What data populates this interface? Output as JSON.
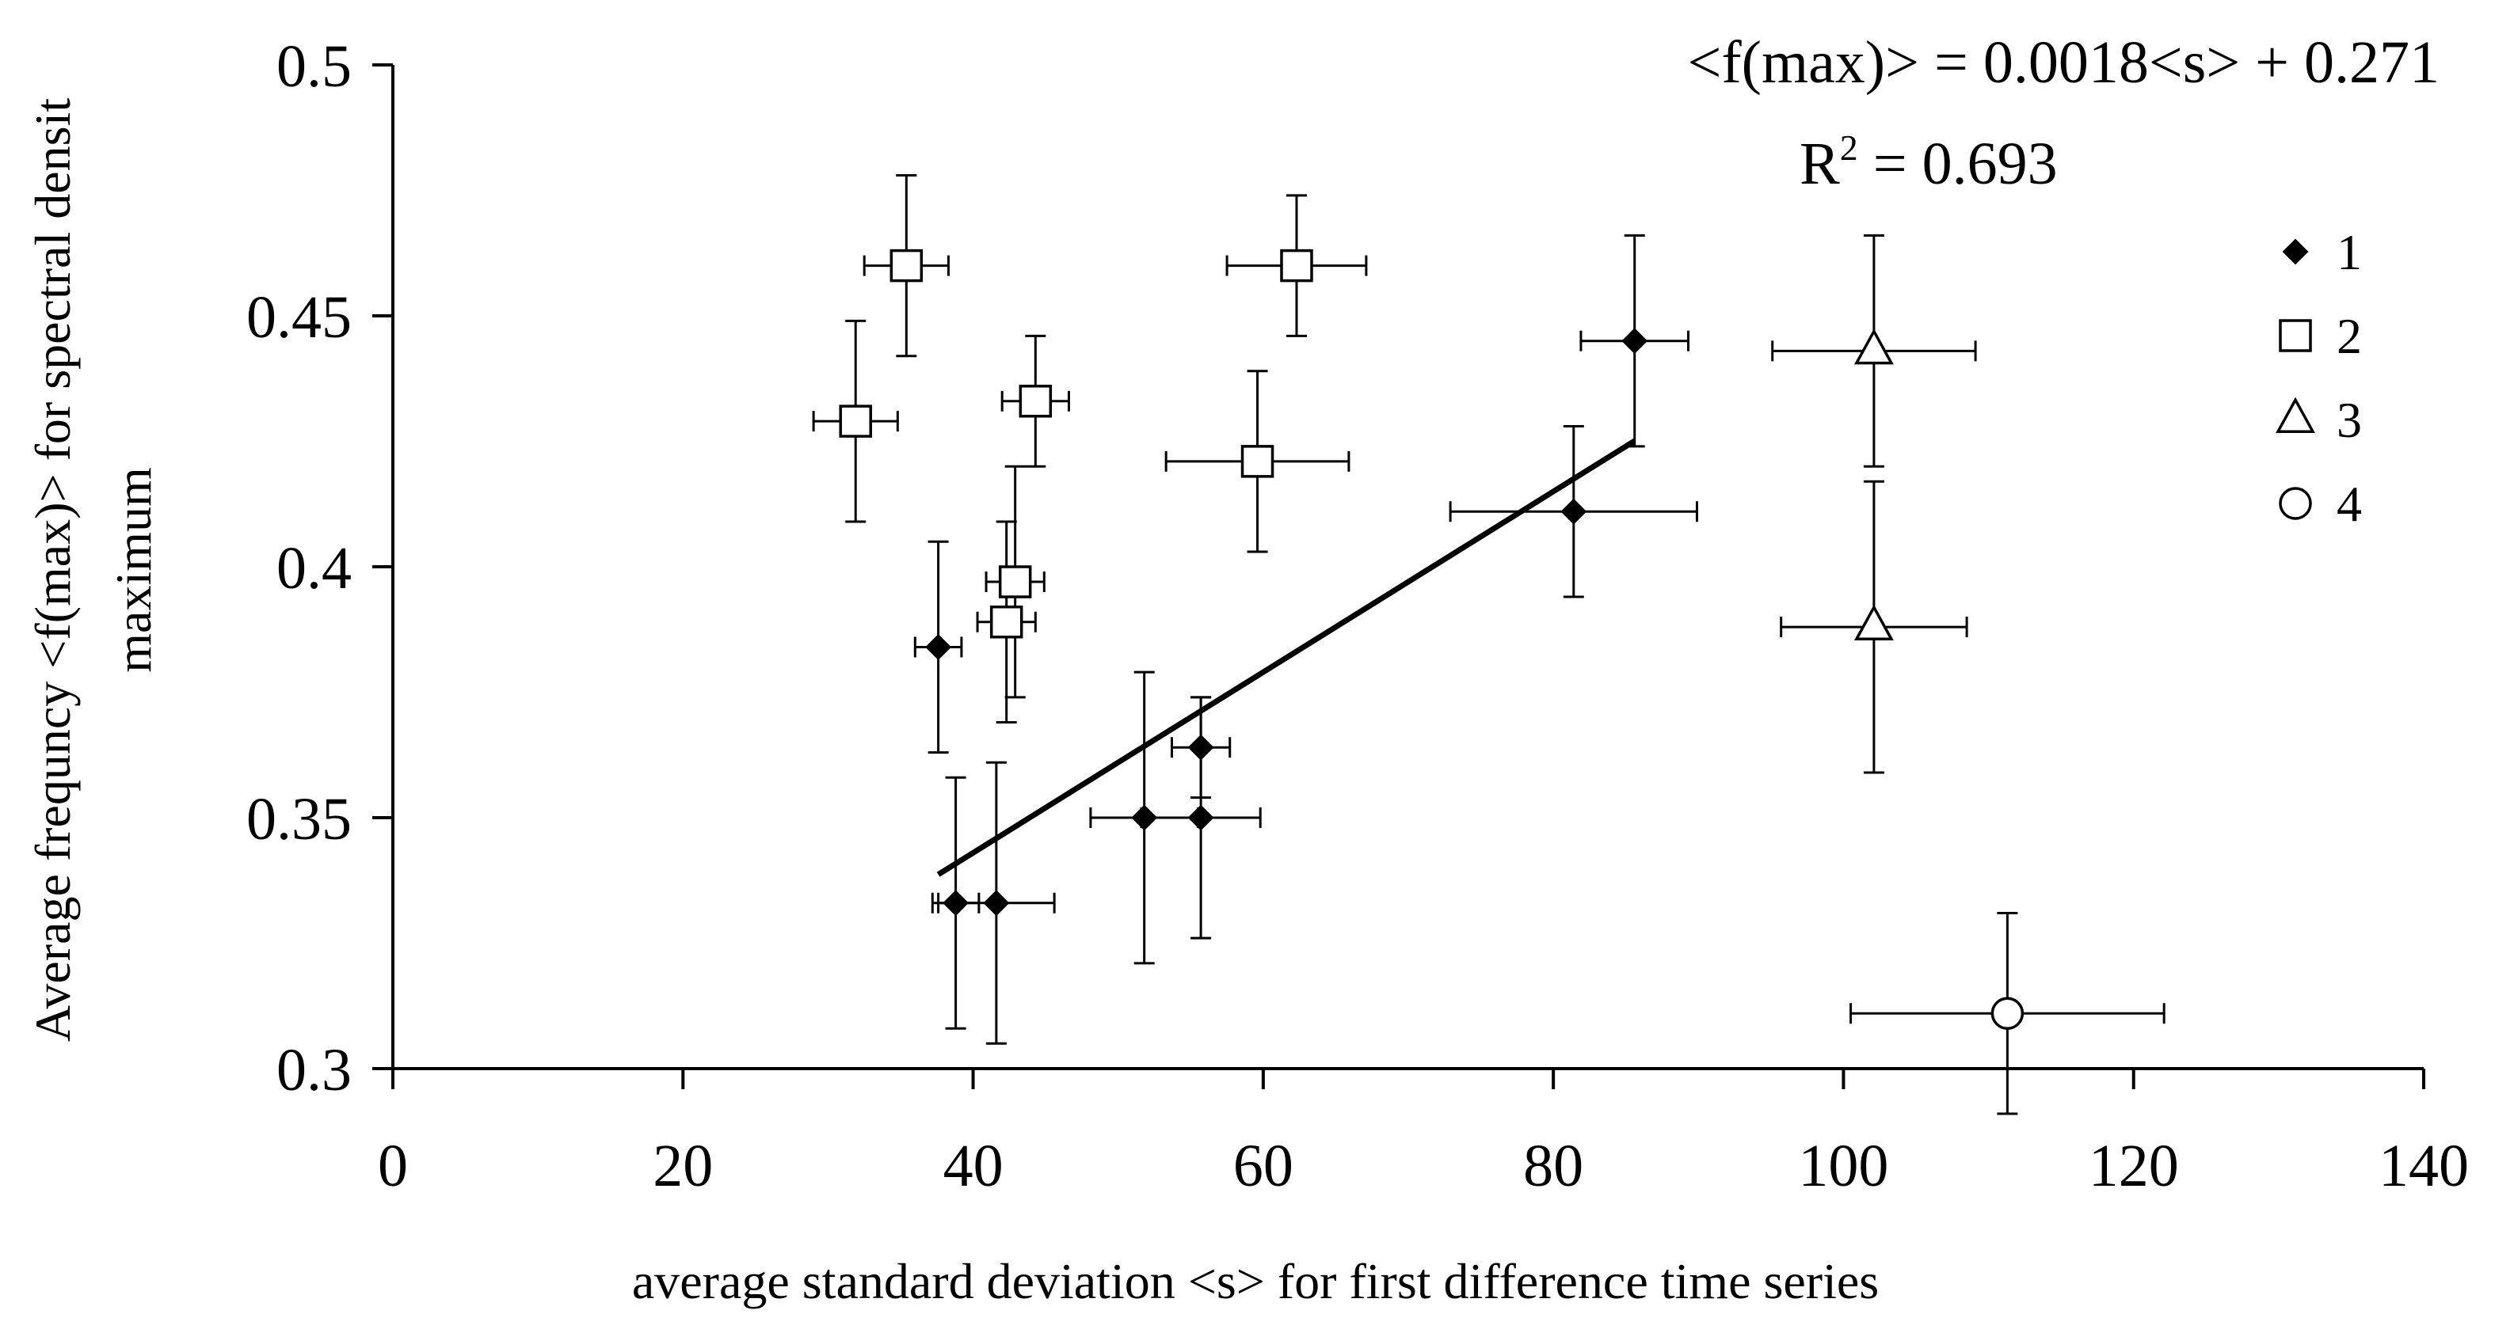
{
  "chart_data": {
    "type": "scatter",
    "title": "",
    "xlabel": "average standard deviation <s> for first difference time series",
    "ylabel_lines": [
      "Average frequncy <f(max)> for spectral densit",
      "maximum"
    ],
    "xlim": [
      0,
      140
    ],
    "ylim": [
      0.3,
      0.5
    ],
    "xticks": [
      0,
      20,
      40,
      60,
      80,
      100,
      120,
      140
    ],
    "yticks": [
      0.3,
      0.35,
      0.4,
      0.45,
      0.5
    ],
    "xtick_labels": [
      "0",
      "20",
      "40",
      "60",
      "80",
      "100",
      "120",
      "140"
    ],
    "ytick_labels": [
      "0.3",
      "0.35",
      "0.4",
      "0.45",
      "0.5"
    ],
    "grid": false,
    "legend_position": "right",
    "series": [
      {
        "name": "1",
        "marker": "diamond-filled",
        "points": [
          {
            "x": 37.6,
            "y": 0.384,
            "xerr": 1.6,
            "yerr": 0.021
          },
          {
            "x": 38.8,
            "y": 0.333,
            "xerr": 1.6,
            "yerr": 0.025
          },
          {
            "x": 41.6,
            "y": 0.333,
            "xerr": 4.0,
            "yerr": 0.028
          },
          {
            "x": 51.8,
            "y": 0.35,
            "xerr": 3.7,
            "yerr": 0.029
          },
          {
            "x": 55.7,
            "y": 0.35,
            "xerr": 4.1,
            "yerr": 0.024
          },
          {
            "x": 55.7,
            "y": 0.364,
            "xerr": 2.0,
            "yerr": 0.01
          },
          {
            "x": 81.4,
            "y": 0.411,
            "xerr": 8.5,
            "yerr": 0.017
          },
          {
            "x": 85.6,
            "y": 0.445,
            "xerr": 3.7,
            "yerr": 0.021
          }
        ]
      },
      {
        "name": "2",
        "marker": "square-open",
        "points": [
          {
            "x": 31.9,
            "y": 0.429,
            "xerr": 2.9,
            "yerr": 0.02
          },
          {
            "x": 35.4,
            "y": 0.46,
            "xerr": 2.9,
            "yerr": 0.018
          },
          {
            "x": 42.3,
            "y": 0.389,
            "xerr": 2.0,
            "yerr": 0.02
          },
          {
            "x": 42.9,
            "y": 0.397,
            "xerr": 2.0,
            "yerr": 0.023
          },
          {
            "x": 44.3,
            "y": 0.433,
            "xerr": 2.3,
            "yerr": 0.013
          },
          {
            "x": 59.6,
            "y": 0.421,
            "xerr": 6.3,
            "yerr": 0.018
          },
          {
            "x": 62.3,
            "y": 0.46,
            "xerr": 4.8,
            "yerr": 0.014
          }
        ]
      },
      {
        "name": "3",
        "marker": "triangle-open",
        "points": [
          {
            "x": 102.1,
            "y": 0.443,
            "xerr": 7.0,
            "yerr": 0.023
          },
          {
            "x": 102.1,
            "y": 0.388,
            "xerr": 6.4,
            "yerr": 0.029
          }
        ]
      },
      {
        "name": "4",
        "marker": "circle-open",
        "points": [
          {
            "x": 111.3,
            "y": 0.311,
            "xerr": 10.8,
            "yerr": 0.02
          }
        ]
      }
    ],
    "trendline": {
      "x_start": 37.6,
      "x_end": 85.6,
      "slope": 0.0018,
      "intercept": 0.271,
      "equation": "<f(max)> = 0.0018<s> + 0.271",
      "r2_prefix": "R",
      "r2_exponent": "2",
      "r2_suffix": " = 0.693"
    }
  }
}
